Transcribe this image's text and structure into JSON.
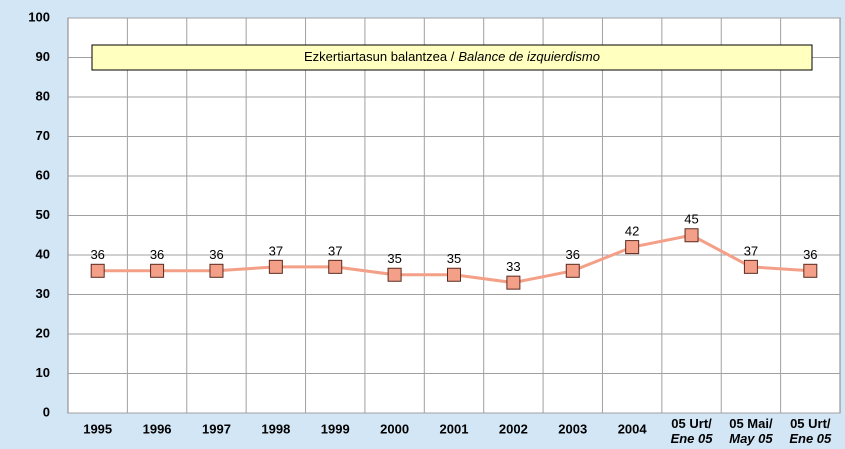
{
  "chart_data": {
    "type": "line",
    "annotation": [
      "Ezkertiartasun balantzea /",
      "Balance de izquierdismo"
    ],
    "categories": [
      "1995",
      "1996",
      "1997",
      "1998",
      "1999",
      "2000",
      "2001",
      "2002",
      "2003",
      "2004",
      "05 Urt/\nEne 05",
      "05 Mai/\nMay 05",
      "05 Urt/\nEne 05"
    ],
    "series": [
      {
        "color": "#f4a088",
        "values": [
          36,
          36,
          36,
          37,
          37,
          35,
          35,
          33,
          36,
          42,
          45,
          37,
          36
        ]
      }
    ],
    "ylim": [
      0,
      100
    ],
    "yticks": [
      0,
      10,
      20,
      30,
      40,
      50,
      60,
      70,
      80,
      90,
      100
    ],
    "grid": true
  }
}
